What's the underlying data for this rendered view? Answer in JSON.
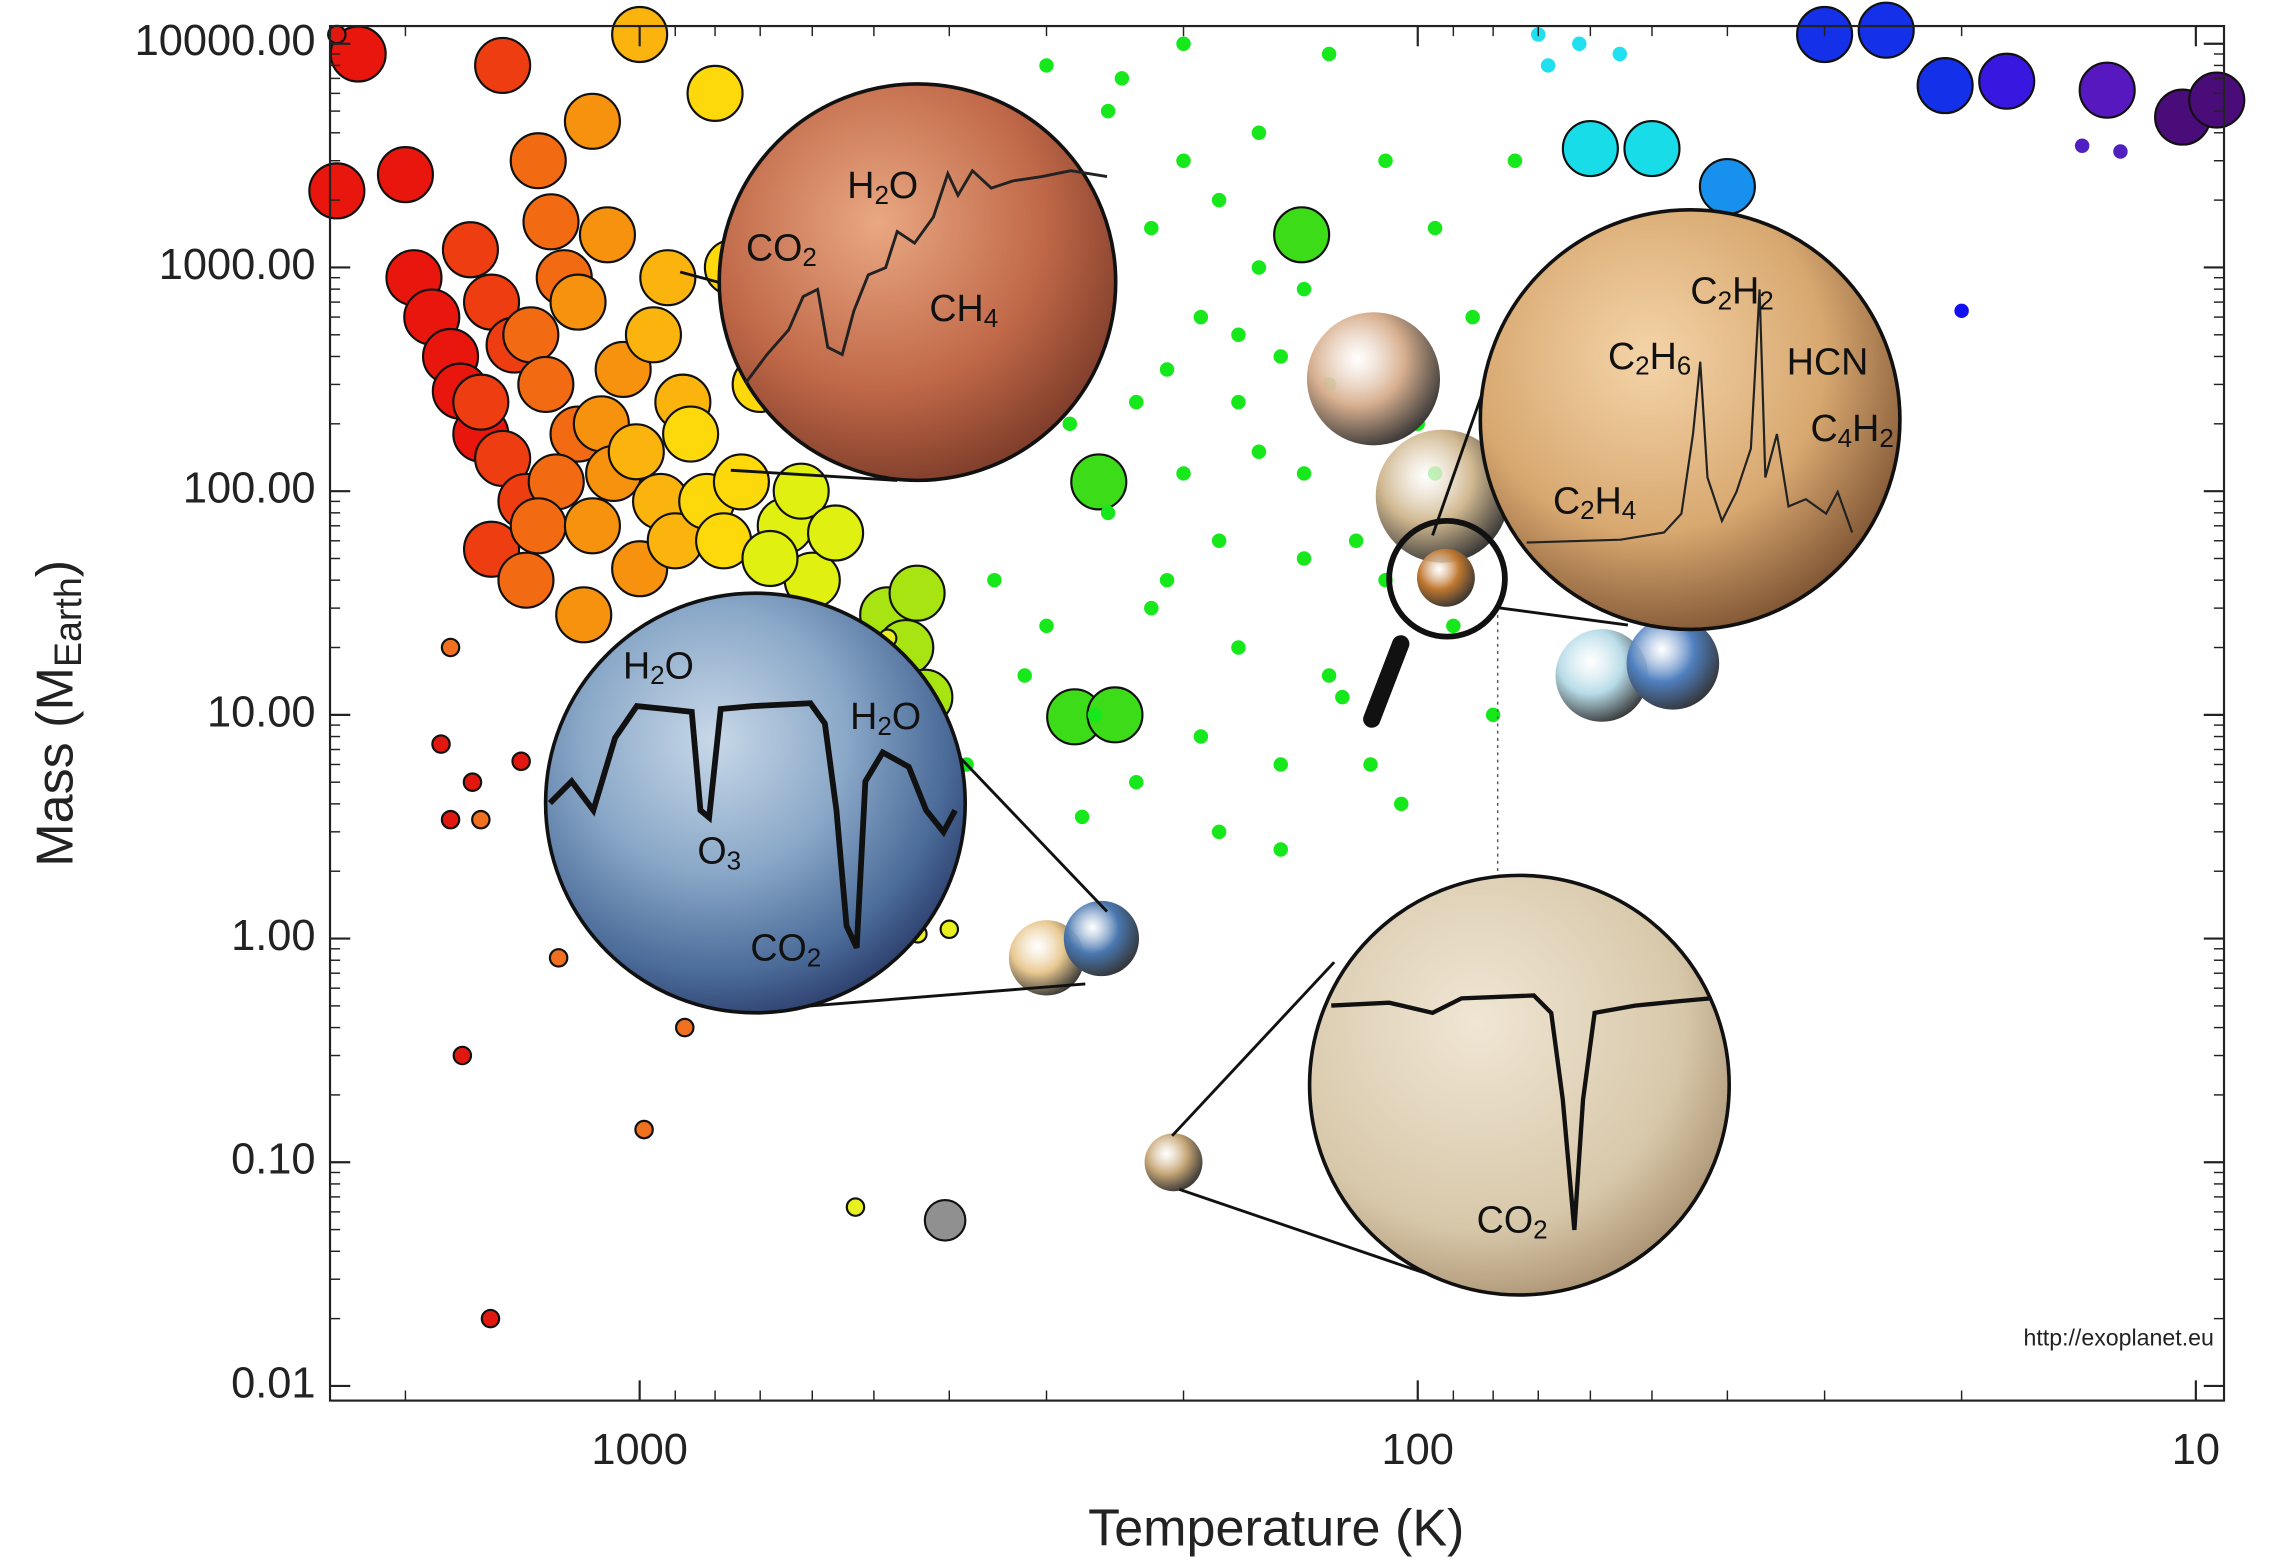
{
  "chart_data": {
    "type": "scatter",
    "xlabel": "Temperature (K)",
    "ylabel": [
      "Mass (M",
      "Earth",
      ")"
    ],
    "xscale": "log",
    "yscale": "log",
    "xlim": [
      2500,
      9.2
    ],
    "ylim": [
      0.0086,
      12000
    ],
    "xticks": [
      1000,
      100,
      10
    ],
    "yticks": [
      {
        "value": 0.01,
        "label": "0.01"
      },
      {
        "value": 0.1,
        "label": "0.10"
      },
      {
        "value": 1,
        "label": "1.00"
      },
      {
        "value": 10,
        "label": "10.00"
      },
      {
        "value": 100,
        "label": "100.00"
      },
      {
        "value": 1000,
        "label": "1000.00"
      },
      {
        "value": 10000,
        "label": "10000.00"
      }
    ],
    "source": "http://exoplanet.eu",
    "spectral_labels": [
      "H2O",
      "CO2",
      "CH4",
      "C2H2",
      "C2H6",
      "HCN",
      "C4H2",
      "C2H4",
      "H2O",
      "H2O",
      "O3",
      "CO2",
      "CO2"
    ],
    "series": [
      {
        "color": "#e8160c",
        "marker": "large",
        "x": [
          2300,
          2000,
          1950,
          1850,
          1750,
          1700,
          1600,
          2450
        ],
        "values": [
          9000,
          2600,
          900,
          600,
          400,
          280,
          180,
          2200
        ]
      },
      {
        "color": "#ee3d10",
        "marker": "large",
        "x": [
          1500,
          1650,
          1550,
          1450,
          1600,
          1500,
          1400,
          1550
        ],
        "values": [
          8000,
          1200,
          700,
          450,
          250,
          140,
          90,
          55
        ]
      },
      {
        "color": "#f26a12",
        "marker": "large",
        "x": [
          1350,
          1300,
          1250,
          1380,
          1320,
          1200,
          1280,
          1350,
          1400
        ],
        "values": [
          3000,
          1600,
          900,
          500,
          300,
          180,
          110,
          70,
          40
        ]
      },
      {
        "color": "#f7920f",
        "marker": "large",
        "x": [
          1150,
          1100,
          1200,
          1050,
          1120,
          1080,
          1150,
          1000,
          1180
        ],
        "values": [
          4500,
          1400,
          700,
          350,
          200,
          120,
          70,
          45,
          28
        ]
      },
      {
        "color": "#fab40d",
        "marker": "large",
        "x": [
          1000,
          920,
          960,
          880,
          1010,
          940,
          900
        ],
        "values": [
          11000,
          900,
          500,
          250,
          150,
          90,
          60
        ]
      },
      {
        "color": "#fdd80b",
        "marker": "large",
        "x": [
          800,
          760,
          860,
          820,
          780,
          700,
          740
        ],
        "values": [
          6000,
          1000,
          180,
          90,
          60,
          300,
          110
        ]
      },
      {
        "color": "#e0f010",
        "marker": "large",
        "x": [
          650,
          600,
          620,
          560,
          680
        ],
        "values": [
          70,
          40,
          100,
          65,
          50
        ]
      },
      {
        "color": "#a8e412",
        "marker": "large",
        "x": [
          480,
          440,
          455,
          430,
          470
        ],
        "values": [
          28,
          35,
          20,
          12,
          7
        ]
      },
      {
        "color": "#3cdc18",
        "marker": "large",
        "x": [
          257,
          276,
          245,
          141
        ],
        "values": [
          110,
          9.8,
          10,
          1400
        ]
      },
      {
        "color": "#18dce8",
        "marker": "large",
        "x": [
          60,
          50
        ],
        "values": [
          3400,
          3400
        ]
      },
      {
        "color": "#1890ee",
        "marker": "large",
        "x": [
          40
        ],
        "values": [
          2300
        ]
      },
      {
        "color": "#1430e8",
        "marker": "large",
        "x": [
          30,
          25,
          21
        ],
        "values": [
          11000,
          11500,
          6500
        ]
      },
      {
        "color": "#3818e0",
        "marker": "large",
        "x": [
          17.5
        ],
        "values": [
          6800
        ]
      },
      {
        "color": "#5818c0",
        "marker": "large",
        "x": [
          13
        ],
        "values": [
          6200
        ]
      },
      {
        "color": "#4a0c78",
        "marker": "large",
        "x": [
          10.4,
          9.4
        ],
        "values": [
          4700,
          5600
        ]
      },
      {
        "color": "#e01810",
        "marker": "small",
        "x": [
          1800,
          1640,
          1750,
          1420,
          1690,
          1555,
          2450
        ],
        "values": [
          7.4,
          5,
          3.4,
          6.2,
          0.3,
          0.02,
          11000
        ]
      },
      {
        "color": "#f07020",
        "marker": "small",
        "x": [
          1271,
          875,
          987,
          1750,
          1600
        ],
        "values": [
          0.82,
          0.4,
          0.14,
          20,
          3.4
        ]
      },
      {
        "color": "#e8f020",
        "marker": "small",
        "x": [
          528,
          439,
          400,
          508,
          480
        ],
        "values": [
          0.063,
          1.05,
          1.1,
          0.78,
          22
        ]
      },
      {
        "color": "#16e81c",
        "marker": "dot",
        "x": [
          300,
          250,
          200,
          180,
          220,
          160,
          140,
          260,
          190,
          170,
          150,
          210,
          230,
          130,
          120,
          280,
          160,
          200,
          250,
          180,
          140,
          110,
          220,
          300,
          170,
          130,
          260,
          190,
          150,
          230,
          180,
          350,
          320,
          380,
          270,
          150,
          80,
          90,
          100,
          95,
          85,
          110,
          130,
          75,
          70,
          200,
          240,
          160,
          170,
          140,
          120,
          210,
          350,
          330,
          310,
          125,
          115,
          95,
          88,
          105
        ],
        "values": [
          8000,
          5000,
          3000,
          2000,
          1500,
          1000,
          800,
          900,
          600,
          500,
          400,
          350,
          250,
          300,
          200,
          200,
          150,
          120,
          80,
          60,
          50,
          40,
          30,
          25,
          20,
          15,
          10,
          8,
          6,
          5,
          3,
          40,
          15,
          6,
          3.5,
          2.5,
          10,
          25,
          200,
          1500,
          600,
          3000,
          9000,
          3000,
          800,
          10000,
          7000,
          4000,
          250,
          120,
          60,
          40,
          150,
          400,
          1200,
          12,
          6,
          120,
          40,
          4
        ]
      },
      {
        "color": "#20e0f0",
        "marker": "dot",
        "x": [
          70,
          68,
          55,
          45,
          62
        ],
        "values": [
          11000,
          8000,
          9000,
          1500,
          10000
        ]
      },
      {
        "color": "#1010f0",
        "marker": "dot",
        "x": [
          20
        ],
        "values": [
          640
        ]
      },
      {
        "color": "#5020c0",
        "marker": "dot",
        "x": [
          14,
          12.5
        ],
        "values": [
          3500,
          3300
        ]
      },
      {
        "color": "#d8b090",
        "marker": "giant",
        "x": [
          114
        ],
        "values": [
          318
        ]
      },
      {
        "color": "#d0b890",
        "marker": "giant",
        "x": [
          93
        ],
        "values": [
          95
        ]
      },
      {
        "color": "#b8dce8",
        "marker": "ice",
        "x": [
          58
        ],
        "values": [
          15
        ]
      },
      {
        "color": "#5080c0",
        "marker": "ice",
        "x": [
          47
        ],
        "values": [
          17
        ]
      },
      {
        "color": "#e8c890",
        "marker": "rocky",
        "x": [
          300
        ],
        "values": [
          0.82
        ]
      },
      {
        "color": "#4a78b0",
        "marker": "rocky",
        "x": [
          255
        ],
        "values": [
          1
        ]
      },
      {
        "color": "#c8a878",
        "marker": "minor",
        "x": [
          206
        ],
        "values": [
          0.1
        ]
      },
      {
        "color": "#c07830",
        "marker": "minor",
        "x": [
          92
        ],
        "values": [
          41
        ]
      },
      {
        "color": "#909090",
        "marker": "tiny",
        "x": [
          405
        ],
        "values": [
          0.055
        ]
      }
    ]
  }
}
